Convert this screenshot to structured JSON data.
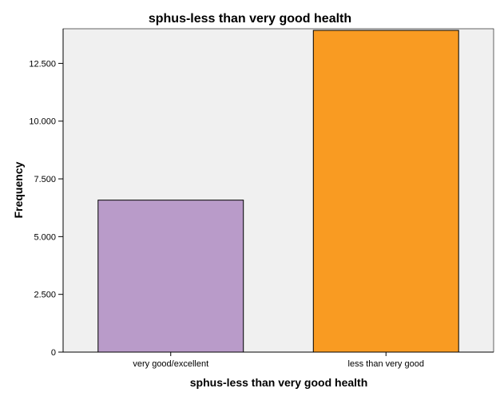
{
  "chart_data": {
    "type": "bar",
    "title": "sphus-less than very good health",
    "xlabel": "sphus-less than very good health",
    "ylabel": "Frequency",
    "categories": [
      "very good/excellent",
      "less than very good"
    ],
    "values": [
      6580,
      13930
    ],
    "ylim": [
      0,
      14000
    ],
    "yticks": [
      0,
      2500,
      5000,
      7500,
      10000,
      12500
    ],
    "ytick_labels": [
      "0",
      "2.500",
      "5.000",
      "7.500",
      "10.000",
      "12.500"
    ],
    "bar_colors": [
      "#b99bc9",
      "#f99b22"
    ],
    "grid": false
  },
  "colors": {
    "plot_background": "#f0f0f0",
    "bar_outline": "#000000"
  }
}
